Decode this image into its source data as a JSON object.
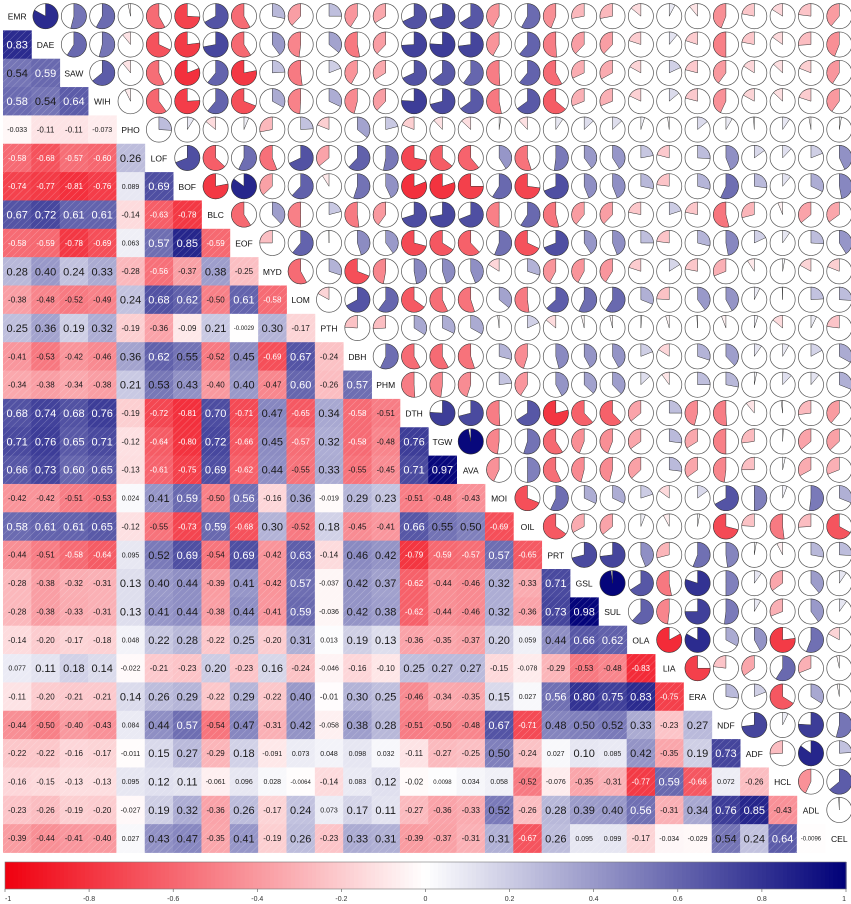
{
  "chart_data": {
    "type": "heatmap",
    "variables": [
      "EMR",
      "DAE",
      "SAW",
      "WIH",
      "PHO",
      "LOF",
      "BOF",
      "BLC",
      "EOF",
      "MYD",
      "LOM",
      "PTH",
      "DBH",
      "PHM",
      "DTH",
      "TGW",
      "AVA",
      "MOI",
      "OIL",
      "PRT",
      "GSL",
      "SUL",
      "OLA",
      "LIA",
      "ERA",
      "NDF",
      "ADF",
      "HCL",
      "ADL",
      "CEL"
    ],
    "lower_triangle_labels": [
      [],
      [
        "0.83"
      ],
      [
        "0.54",
        "0.59"
      ],
      [
        "0.58",
        "0.54",
        "0.64"
      ],
      [
        "-0.033",
        "-0.11",
        "-0.11",
        "-0.073"
      ],
      [
        "-0.58",
        "-0.68",
        "-0.57",
        "-0.60",
        "0.26"
      ],
      [
        "-0.74",
        "-0.77",
        "-0.81",
        "-0.76",
        "0.089",
        "0.69"
      ],
      [
        "0.67",
        "0.72",
        "0.61",
        "0.61",
        "-0.14",
        "-0.63",
        "-0.78"
      ],
      [
        "-0.58",
        "-0.59",
        "-0.78",
        "-0.69",
        "0.063",
        "0.57",
        "0.85",
        "-0.59"
      ],
      [
        "0.28",
        "0.40",
        "0.24",
        "0.33",
        "-0.28",
        "-0.56",
        "-0.37",
        "0.38",
        "-0.25"
      ],
      [
        "-0.38",
        "-0.48",
        "-0.52",
        "-0.49",
        "0.24",
        "0.68",
        "0.62",
        "-0.50",
        "0.61",
        "-0.58"
      ],
      [
        "0.25",
        "0.36",
        "0.19",
        "0.32",
        "-0.19",
        "-0.36",
        "-0.09",
        "0.21",
        "-0.0029",
        "0.30",
        "-0.17"
      ],
      [
        "-0.41",
        "-0.53",
        "-0.42",
        "-0.46",
        "0.36",
        "0.62",
        "0.55",
        "-0.52",
        "0.45",
        "-0.69",
        "0.67",
        "-0.24"
      ],
      [
        "-0.34",
        "-0.38",
        "-0.34",
        "-0.38",
        "0.21",
        "0.53",
        "0.43",
        "-0.40",
        "0.40",
        "-0.47",
        "0.60",
        "-0.26",
        "0.57"
      ],
      [
        "0.68",
        "0.74",
        "0.68",
        "0.76",
        "-0.19",
        "-0.72",
        "-0.81",
        "0.70",
        "-0.71",
        "0.47",
        "-0.65",
        "0.34",
        "-0.58",
        "-0.51"
      ],
      [
        "0.71",
        "0.76",
        "0.65",
        "0.71",
        "-0.12",
        "-0.64",
        "-0.80",
        "0.72",
        "-0.66",
        "0.45",
        "-0.57",
        "0.32",
        "-0.58",
        "-0.48",
        "0.76"
      ],
      [
        "0.66",
        "0.73",
        "0.60",
        "0.65",
        "-0.13",
        "-0.61",
        "-0.75",
        "0.69",
        "-0.62",
        "0.44",
        "-0.55",
        "0.33",
        "-0.55",
        "-0.45",
        "0.71",
        "0.97"
      ],
      [
        "-0.42",
        "-0.42",
        "-0.51",
        "-0.53",
        "0.024",
        "0.41",
        "0.59",
        "-0.50",
        "0.56",
        "-0.16",
        "0.36",
        "-0.019",
        "0.29",
        "0.23",
        "-0.51",
        "-0.48",
        "-0.43"
      ],
      [
        "0.58",
        "0.61",
        "0.61",
        "0.65",
        "-0.12",
        "-0.55",
        "-0.73",
        "0.59",
        "-0.68",
        "0.30",
        "-0.52",
        "0.18",
        "-0.45",
        "-0.41",
        "0.66",
        "0.55",
        "0.50",
        "-0.69"
      ],
      [
        "-0.44",
        "-0.51",
        "-0.58",
        "-0.64",
        "0.095",
        "0.52",
        "0.69",
        "-0.54",
        "0.69",
        "-0.42",
        "0.63",
        "-0.14",
        "0.46",
        "0.42",
        "-0.79",
        "-0.59",
        "-0.57",
        "0.57",
        "-0.65"
      ],
      [
        "-0.28",
        "-0.38",
        "-0.32",
        "-0.31",
        "0.13",
        "0.40",
        "0.44",
        "-0.39",
        "0.41",
        "-0.42",
        "0.57",
        "-0.037",
        "0.42",
        "0.37",
        "-0.62",
        "-0.44",
        "-0.46",
        "0.32",
        "-0.33",
        "0.71"
      ],
      [
        "-0.28",
        "-0.38",
        "-0.33",
        "-0.31",
        "0.13",
        "0.41",
        "0.44",
        "-0.38",
        "0.44",
        "-0.41",
        "0.59",
        "-0.036",
        "0.42",
        "0.38",
        "-0.62",
        "-0.44",
        "-0.46",
        "0.32",
        "-0.36",
        "0.73",
        "0.98"
      ],
      [
        "-0.14",
        "-0.20",
        "-0.17",
        "-0.18",
        "0.048",
        "0.22",
        "0.28",
        "-0.22",
        "0.25",
        "-0.20",
        "0.31",
        "0.013",
        "0.19",
        "0.13",
        "-0.36",
        "-0.35",
        "-0.37",
        "0.20",
        "0.059",
        "0.44",
        "0.66",
        "0.62"
      ],
      [
        "0.077",
        "0.11",
        "0.18",
        "0.14",
        "-0.022",
        "-0.21",
        "-0.23",
        "0.20",
        "-0.23",
        "0.16",
        "-0.24",
        "-0.046",
        "-0.16",
        "-0.10",
        "0.25",
        "0.27",
        "0.27",
        "-0.15",
        "-0.078",
        "-0.29",
        "-0.53",
        "-0.48",
        "-0.83"
      ],
      [
        "-0.11",
        "-0.20",
        "-0.21",
        "-0.21",
        "0.14",
        "0.26",
        "0.29",
        "-0.22",
        "0.29",
        "-0.22",
        "0.40",
        "-0.01",
        "0.30",
        "0.25",
        "-0.46",
        "-0.34",
        "-0.35",
        "0.15",
        "0.027",
        "0.56",
        "0.80",
        "0.75",
        "0.83",
        "-0.75"
      ],
      [
        "-0.44",
        "-0.50",
        "-0.40",
        "-0.43",
        "0.084",
        "0.44",
        "0.57",
        "-0.54",
        "0.47",
        "-0.31",
        "0.42",
        "-0.058",
        "0.38",
        "0.28",
        "-0.51",
        "-0.50",
        "-0.48",
        "0.67",
        "-0.71",
        "0.48",
        "0.50",
        "0.52",
        "0.33",
        "-0.23",
        "0.27"
      ],
      [
        "-0.22",
        "-0.22",
        "-0.16",
        "-0.17",
        "-0.011",
        "0.15",
        "0.27",
        "-0.29",
        "0.18",
        "-0.091",
        "0.073",
        "0.048",
        "0.098",
        "0.032",
        "-0.11",
        "-0.27",
        "-0.25",
        "0.50",
        "-0.24",
        "0.027",
        "0.10",
        "0.085",
        "0.42",
        "-0.35",
        "0.19",
        "0.73"
      ],
      [
        "-0.16",
        "-0.15",
        "-0.13",
        "-0.13",
        "0.095",
        "0.12",
        "0.11",
        "-0.061",
        "0.096",
        "0.028",
        "-0.0064",
        "-0.14",
        "0.083",
        "0.12",
        "-0.02",
        "0.0098",
        "0.034",
        "0.058",
        "-0.52",
        "-0.076",
        "-0.35",
        "-0.31",
        "-0.77",
        "0.59",
        "-0.66",
        "0.072",
        "-0.26"
      ],
      [
        "-0.23",
        "-0.26",
        "-0.19",
        "-0.20",
        "-0.027",
        "0.19",
        "0.32",
        "-0.36",
        "0.26",
        "-0.17",
        "0.24",
        "0.073",
        "0.17",
        "0.11",
        "-0.27",
        "-0.36",
        "-0.33",
        "0.52",
        "-0.26",
        "0.28",
        "0.39",
        "0.40",
        "0.56",
        "-0.31",
        "0.34",
        "0.76",
        "0.85",
        "-0.43"
      ],
      [
        "-0.39",
        "-0.44",
        "-0.41",
        "-0.40",
        "0.027",
        "0.43",
        "0.47",
        "-0.35",
        "0.41",
        "-0.19",
        "0.26",
        "-0.23",
        "0.33",
        "0.31",
        "-0.39",
        "-0.37",
        "-0.31",
        "0.31",
        "-0.67",
        "0.26",
        "0.095",
        "0.099",
        "-0.17",
        "-0.034",
        "-0.029",
        "0.54",
        "0.24",
        "0.64",
        "-0.0096"
      ]
    ],
    "colorbar": {
      "min": -1,
      "max": 1,
      "tick_labels": [
        "-1",
        "-0.8",
        "-0.6",
        "-0.4",
        "-0.2",
        "0",
        "0.2",
        "0.4",
        "0.6",
        "0.8",
        "1"
      ],
      "colors": {
        "negative": "#f0000f",
        "zero": "#ffffff",
        "positive": "#000078"
      }
    },
    "upper_triangle": "pie",
    "lower_triangle": "shaded numbers",
    "grid": false,
    "legend": "bottom"
  }
}
